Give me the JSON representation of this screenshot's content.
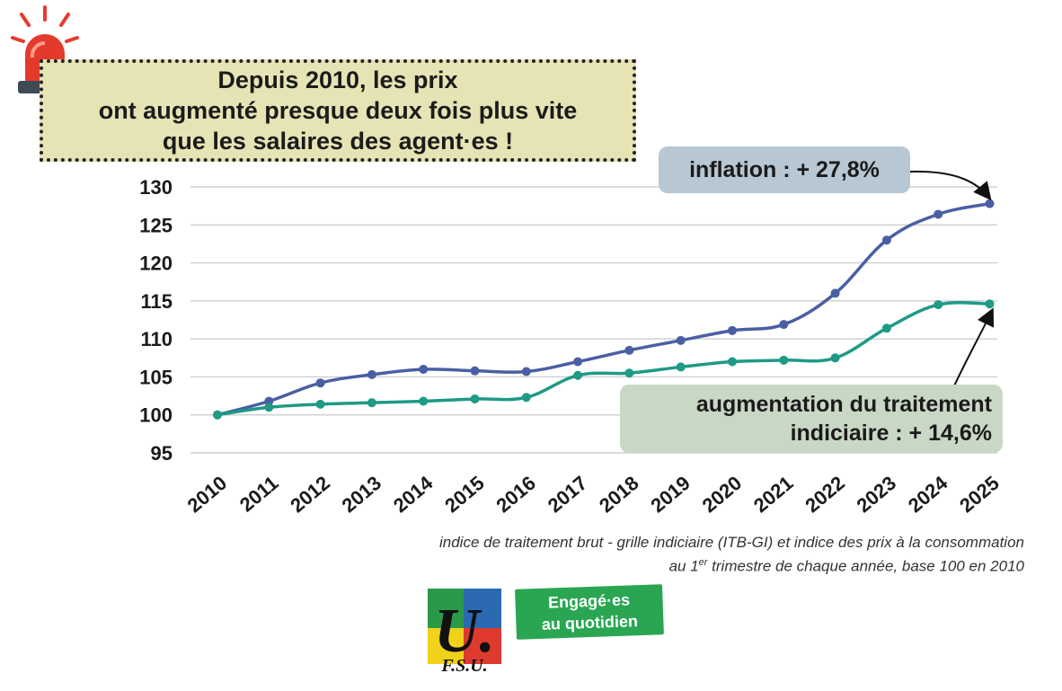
{
  "headline": {
    "line1": "Depuis 2010, les prix",
    "line2": "ont augmenté presque deux fois plus vite",
    "line3": "que les salaires des agent·es !"
  },
  "callouts": {
    "inflation": "inflation : + 27,8%",
    "wage_line1": "augmentation du traitement",
    "wage_line2": "indiciaire : + 14,6%"
  },
  "footnote": {
    "line1": "indice de traitement brut - grille indiciaire (ITB-GI) et indice des prix à la consommation",
    "line2_pre": "au 1",
    "line2_sup": "er",
    "line2_post": " trimestre de chaque année, base 100 en 2010"
  },
  "logo": {
    "text": "F.S.U.",
    "letter": "U."
  },
  "slogan": {
    "line1": "Engagé·es",
    "line2": "au quotidien"
  },
  "colors": {
    "inflation": "#4a5fa3",
    "wage": "#1e9a86",
    "grid": "#c8c8c8"
  },
  "chart_data": {
    "type": "line",
    "title": "",
    "xlabel": "",
    "ylabel": "",
    "categories": [
      "2010",
      "2011",
      "2012",
      "2013",
      "2014",
      "2015",
      "2016",
      "2017",
      "2018",
      "2019",
      "2020",
      "2021",
      "2022",
      "2023",
      "2024",
      "2025"
    ],
    "yticks": [
      "95",
      "100",
      "105",
      "110",
      "115",
      "120",
      "125",
      "130"
    ],
    "ylim": [
      95,
      130
    ],
    "grid": true,
    "series": [
      {
        "key": "inflation",
        "values": [
          100,
          101.8,
          104.2,
          105.3,
          106.0,
          105.8,
          105.7,
          107.0,
          108.5,
          109.8,
          111.1,
          111.9,
          116.0,
          123.0,
          126.4,
          127.8
        ]
      },
      {
        "key": "wage",
        "values": [
          100,
          101.0,
          101.4,
          101.6,
          101.8,
          102.1,
          102.3,
          105.2,
          105.5,
          106.3,
          107.0,
          107.2,
          107.5,
          111.4,
          114.5,
          114.6
        ]
      }
    ]
  }
}
